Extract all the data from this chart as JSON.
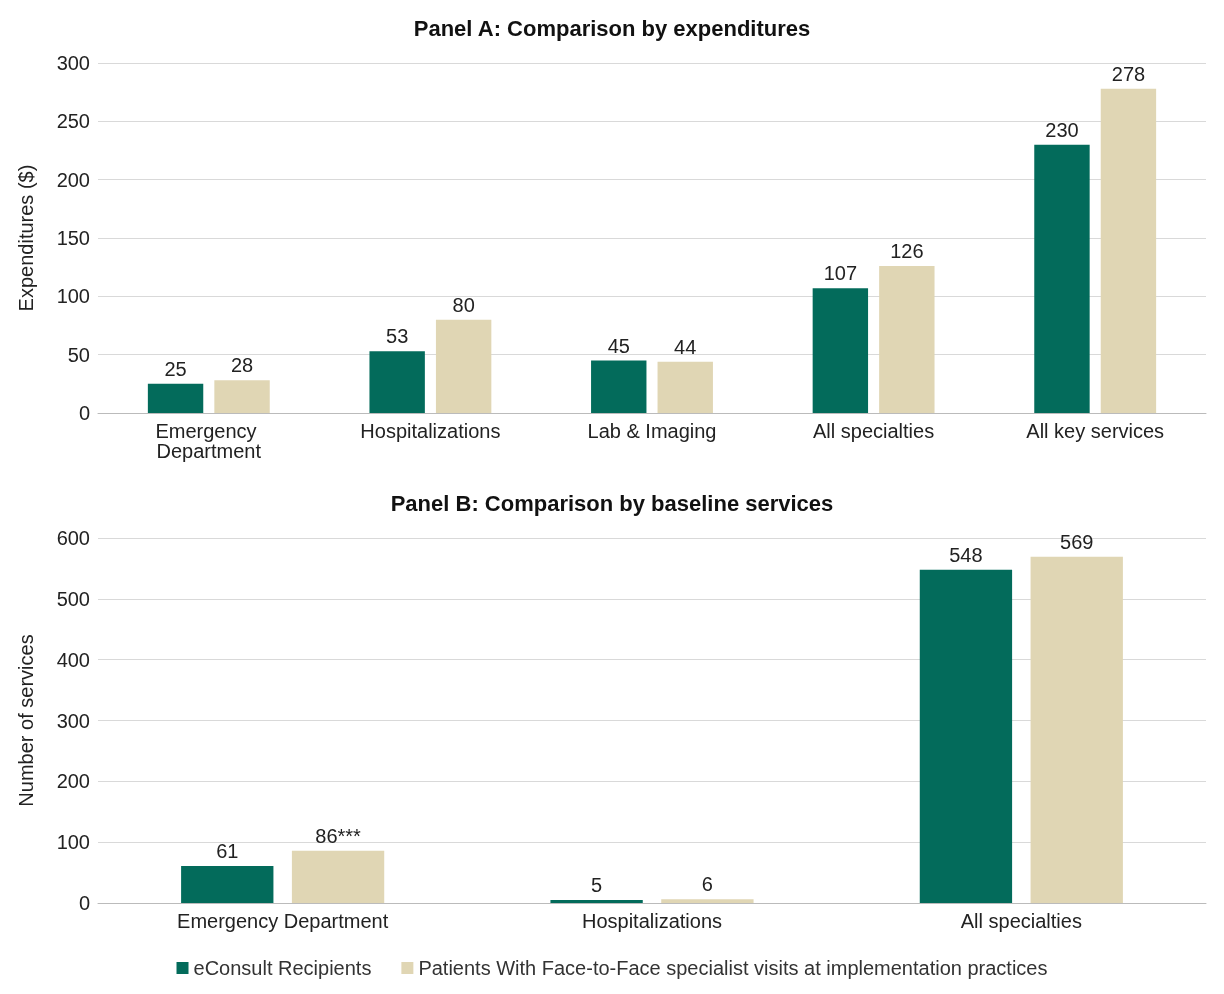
{
  "chart_data": [
    {
      "type": "bar",
      "title": "Panel A: Comparison by expenditures",
      "ylabel": "Expenditures ($)",
      "categories": [
        "Emergency Department",
        "Hospitalizations",
        "Lab & Imaging",
        "All specialties",
        "All key services"
      ],
      "series": [
        {
          "color": "#036b5b",
          "values": [
            25,
            53,
            45,
            107,
            230
          ]
        },
        {
          "color": "#e0d6b4",
          "values": [
            28,
            80,
            44,
            126,
            278
          ]
        }
      ],
      "ylim": [
        0,
        300
      ],
      "yticks": [
        0,
        50,
        100,
        150,
        200,
        250,
        300
      ],
      "grid": "y",
      "data_labels": true,
      "legend": false
    },
    {
      "type": "bar",
      "title": "Panel B: Comparison by baseline services",
      "ylabel": "Number of services",
      "categories": [
        "Emergency Department",
        "Hospitalizations",
        "All specialties"
      ],
      "series": [
        {
          "name": "eConsult Recipients",
          "color": "#036b5b",
          "values": [
            61,
            5,
            548
          ],
          "value_labels": [
            "61",
            "5",
            "548"
          ]
        },
        {
          "name": "Patients With Face-to-Face specialist visits at implementation practices",
          "color": "#e0d6b4",
          "values": [
            86,
            6,
            569
          ],
          "value_labels": [
            "86***",
            "6",
            "569"
          ]
        }
      ],
      "ylim": [
        0,
        600
      ],
      "yticks": [
        0,
        100,
        200,
        300,
        400,
        500,
        600
      ],
      "grid": "y",
      "legend": "bottom"
    }
  ]
}
